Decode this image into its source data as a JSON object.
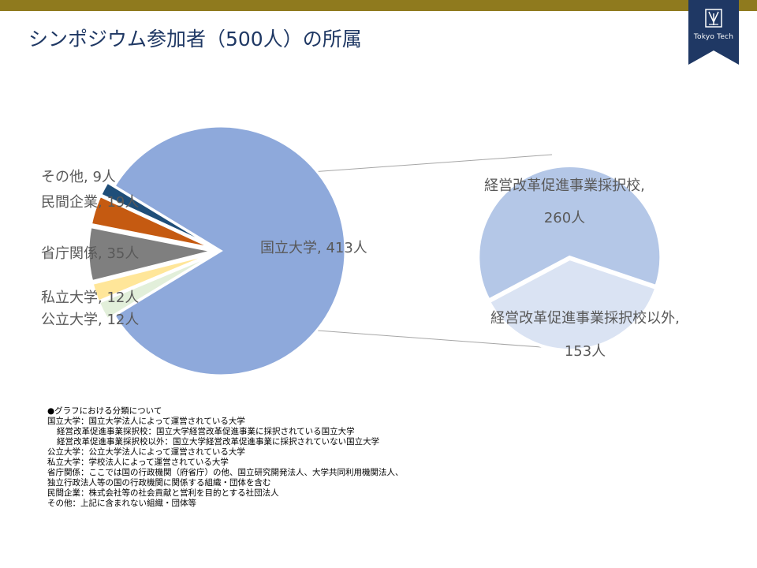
{
  "header": {
    "title": "シンポジウム参加者（500人）の所属",
    "logo_text": "Tokyo Tech"
  },
  "colors": {
    "accent_bar": "#8F7A1E",
    "logo_bg": "#1F3864",
    "title": "#1F3864"
  },
  "chart_data": {
    "type": "pie",
    "title": "",
    "main_pie": {
      "slices": [
        {
          "label": "国立大学",
          "value": 413,
          "unit": "人",
          "color": "#8EA9DB",
          "data_label": "国立大学, 413人"
        },
        {
          "label": "公立大学",
          "value": 12,
          "unit": "人",
          "color": "#E2EFDA",
          "data_label": "公立大学, 12人"
        },
        {
          "label": "私立大学",
          "value": 12,
          "unit": "人",
          "color": "#FFE699",
          "data_label": "私立大学, 12人"
        },
        {
          "label": "省庁関係",
          "value": 35,
          "unit": "人",
          "color": "#7F7F7F",
          "data_label": "省庁関係, 35人"
        },
        {
          "label": "民間企業",
          "value": 19,
          "unit": "人",
          "color": "#C55A11",
          "data_label": "民間企業, 19人"
        },
        {
          "label": "その他",
          "value": 9,
          "unit": "人",
          "color": "#1F4E79",
          "data_label": "その他, 9人"
        }
      ]
    },
    "breakdown_pie": {
      "of": "国立大学",
      "slices": [
        {
          "label": "経営改革促進事業採択校",
          "value": 260,
          "unit": "人",
          "color": "#B4C7E7",
          "data_label_line1": "経営改革促進事業採択校,",
          "data_label_line2": "260人"
        },
        {
          "label": "経営改革促進事業採択校以外",
          "value": 153,
          "unit": "人",
          "color": "#DAE3F3",
          "data_label_line1": "経営改革促進事業採択校以外,",
          "data_label_line2": "153人"
        }
      ]
    }
  },
  "notes": {
    "lines": [
      "●グラフにおける分類について",
      "国立大学：国立大学法人によって運営されている大学",
      "経営改革促進事業採択校：国立大学経営改革促進事業に採択されている国立大学",
      "経営改革促進事業採択校以外：国立大学経営改革促進事業に採択されていない国立大学",
      "公立大学：公立大学法人によって運営されている大学",
      "私立大学：学校法人によって運営されている大学",
      "省庁関係：ここでは国の行政機関（府省庁）の他、国立研究開発法人、大学共同利用機関法人、",
      "独立行政法人等の国の行政機関に関係する組織・団体を含む",
      "民間企業：株式会社等の社会貢献と営利を目的とする社団法人",
      "その他：上記に含まれない組織・団体等"
    ]
  }
}
